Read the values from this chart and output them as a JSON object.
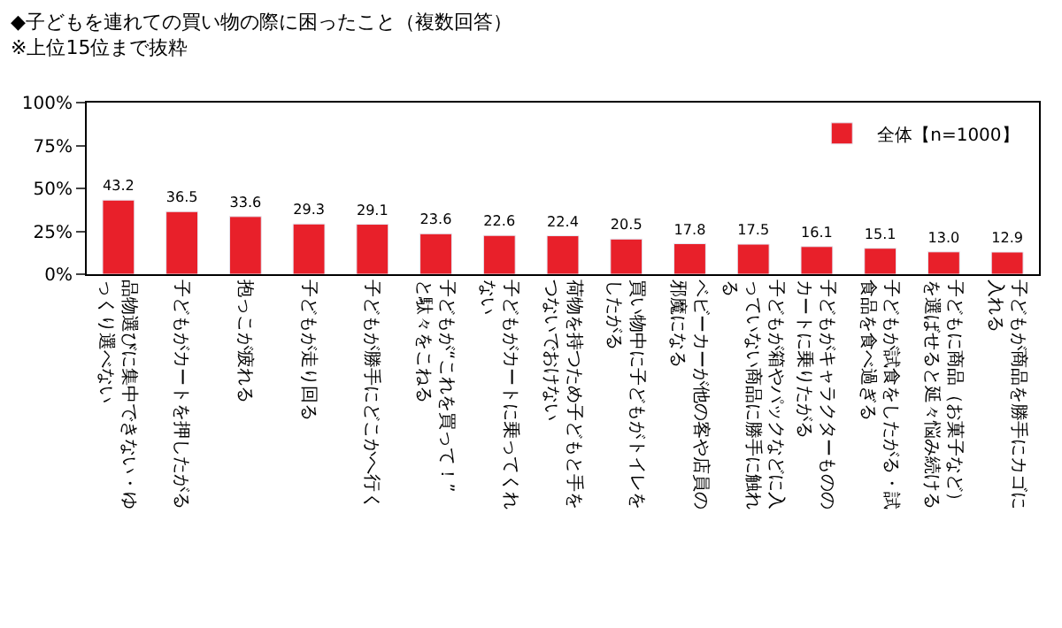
{
  "chart_data": {
    "type": "bar",
    "title": "◆子どもを連れての買い物の際に困ったこと（複数回答）",
    "subtitle": "※上位15位まで抜粋",
    "categories": [
      "品物選びに集中できない・ゆっくり選べない",
      "子どもがカートを押したがる",
      "抱っこが疲れる",
      "子どもが走り回る",
      "子どもが勝手にどこかへ行く",
      "子どもが“これを買って！”と駄々をこねる",
      "子どもがカートに乗ってくれない",
      "荷物を持つため子どもと手をつないでおけない",
      "買い物中に子どもがトイレをしたがる",
      "ベビーカーが他の客や店員の邪魔になる",
      "子どもが箱やパックなどに入っていない商品に勝手に触れる",
      "子どもがキャラクターもののカートに乗りたがる",
      "子どもが試食をしたがる・試食品を食べ過ぎる",
      "子どもに商品（お菓子など）を選ばせると延々悩み続ける",
      "子どもが商品を勝手にカゴに入れる"
    ],
    "series": [
      {
        "name": "全体【n=1000】",
        "color": "#e8202a",
        "values": [
          43.2,
          36.5,
          33.6,
          29.3,
          29.1,
          23.6,
          22.6,
          22.4,
          20.5,
          17.8,
          17.5,
          16.1,
          15.1,
          13.0,
          12.9
        ]
      }
    ],
    "ylim": [
      0,
      100
    ],
    "yticks": [
      {
        "value": 0,
        "label": "0%"
      },
      {
        "value": 25,
        "label": "25%"
      },
      {
        "value": 50,
        "label": "50%"
      },
      {
        "value": 75,
        "label": "75%"
      },
      {
        "value": 100,
        "label": "100%"
      }
    ],
    "value_labels": [
      "43.2",
      "36.5",
      "33.6",
      "29.3",
      "29.1",
      "23.6",
      "22.6",
      "22.4",
      "20.5",
      "17.8",
      "17.5",
      "16.1",
      "15.1",
      "13.0",
      "12.9"
    ],
    "legend": "top right",
    "grid": false
  }
}
